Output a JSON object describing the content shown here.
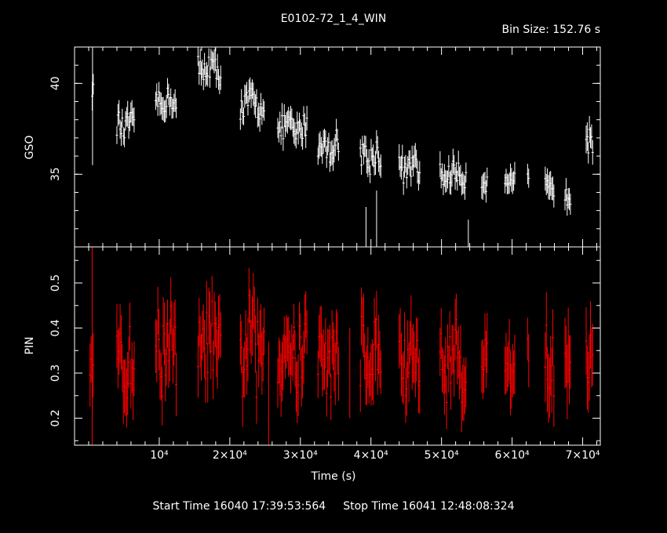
{
  "header": {
    "title": "E0102-72_1_4_WIN",
    "bin_size": "Bin Size: 152.76 s"
  },
  "footer": {
    "start_time": "Start Time 16040 17:39:53:564",
    "stop_time": "Stop Time 16041 12:48:08:324"
  },
  "colors": {
    "gso": "#ffffff",
    "pin": "#ff0000",
    "axes": "#ffffff",
    "background": "#000000"
  },
  "chart_data": [
    {
      "type": "scatter",
      "name": "gso-panel",
      "ylabel": "GSO",
      "xlim": [
        -2000,
        72500
      ],
      "ylim": [
        31.0,
        42.0
      ],
      "yticks": [
        35,
        40
      ],
      "ytick_labels": [
        "35",
        "40"
      ],
      "error_bars": true,
      "segments": [
        {
          "x0": 500,
          "x1": 800,
          "y": 39.7,
          "amp": 0.5,
          "err": 0.7
        },
        {
          "x0": 4000,
          "x1": 6500,
          "y": 37.6,
          "amp": 0.7,
          "err": 0.6
        },
        {
          "x0": 9500,
          "x1": 12500,
          "y": 39.0,
          "amp": 0.6,
          "err": 0.6
        },
        {
          "x0": 15500,
          "x1": 18800,
          "y": 40.8,
          "amp": 0.8,
          "err": 0.6
        },
        {
          "x0": 21500,
          "x1": 25000,
          "y": 38.9,
          "amp": 0.7,
          "err": 0.6
        },
        {
          "x0": 26800,
          "x1": 31000,
          "y": 37.5,
          "amp": 0.7,
          "err": 0.6
        },
        {
          "x0": 32500,
          "x1": 35500,
          "y": 36.5,
          "amp": 0.7,
          "err": 0.6
        },
        {
          "x0": 38500,
          "x1": 41500,
          "y": 36.0,
          "amp": 0.8,
          "err": 0.6
        },
        {
          "x0": 44000,
          "x1": 47000,
          "y": 35.3,
          "amp": 0.7,
          "err": 0.6
        },
        {
          "x0": 49800,
          "x1": 53500,
          "y": 35.0,
          "amp": 0.6,
          "err": 0.6
        },
        {
          "x0": 55700,
          "x1": 56500,
          "y": 34.6,
          "amp": 0.4,
          "err": 0.6
        },
        {
          "x0": 59000,
          "x1": 60500,
          "y": 34.5,
          "amp": 0.5,
          "err": 0.6
        },
        {
          "x0": 62200,
          "x1": 62500,
          "y": 34.8,
          "amp": 0.3,
          "err": 0.5
        },
        {
          "x0": 64700,
          "x1": 66000,
          "y": 34.2,
          "amp": 0.5,
          "err": 0.7
        },
        {
          "x0": 67500,
          "x1": 68300,
          "y": 33.8,
          "amp": 0.4,
          "err": 0.6
        },
        {
          "x0": 70500,
          "x1": 71500,
          "y": 37.5,
          "amp": 1.0,
          "err": 0.7
        }
      ],
      "outliers": [
        {
          "x": 550,
          "y": 39.0,
          "err": 3.5
        },
        {
          "x": 39300,
          "y": 31.0,
          "err": 2.2
        },
        {
          "x": 40800,
          "y": 31.8,
          "err": 2.3
        },
        {
          "x": 53800,
          "y": 30.8,
          "err": 1.7
        }
      ]
    },
    {
      "type": "scatter",
      "name": "pin-panel",
      "ylabel": "PIN",
      "xlabel": "Time (s)",
      "xlim": [
        -2000,
        72500
      ],
      "ylim": [
        0.14,
        0.58
      ],
      "yticks": [
        0.2,
        0.3,
        0.4,
        0.5
      ],
      "ytick_labels": [
        "0.2",
        "0.3",
        "0.4",
        "0.5"
      ],
      "xticks": [
        10000,
        20000,
        30000,
        40000,
        50000,
        60000,
        70000
      ],
      "xtick_labels": [
        "10⁴",
        "2×10⁴",
        "3×10⁴",
        "4×10⁴",
        "5×10⁴",
        "6×10⁴",
        "7×10⁴"
      ],
      "error_bars": true,
      "segments": [
        {
          "x0": 200,
          "x1": 800,
          "y": 0.32,
          "amp": 0.03,
          "err": 0.06
        },
        {
          "x0": 4000,
          "x1": 6500,
          "y": 0.31,
          "amp": 0.07,
          "err": 0.06
        },
        {
          "x0": 9500,
          "x1": 12500,
          "y": 0.36,
          "amp": 0.08,
          "err": 0.06
        },
        {
          "x0": 15500,
          "x1": 18800,
          "y": 0.36,
          "amp": 0.08,
          "err": 0.06
        },
        {
          "x0": 21500,
          "x1": 25000,
          "y": 0.36,
          "amp": 0.09,
          "err": 0.06
        },
        {
          "x0": 26800,
          "x1": 31000,
          "y": 0.35,
          "amp": 0.08,
          "err": 0.06
        },
        {
          "x0": 32500,
          "x1": 35500,
          "y": 0.33,
          "amp": 0.07,
          "err": 0.06
        },
        {
          "x0": 38500,
          "x1": 41500,
          "y": 0.33,
          "amp": 0.08,
          "err": 0.06
        },
        {
          "x0": 44000,
          "x1": 47000,
          "y": 0.33,
          "amp": 0.07,
          "err": 0.06
        },
        {
          "x0": 49800,
          "x1": 53500,
          "y": 0.33,
          "amp": 0.07,
          "err": 0.06
        },
        {
          "x0": 55700,
          "x1": 56500,
          "y": 0.33,
          "amp": 0.05,
          "err": 0.06
        },
        {
          "x0": 59000,
          "x1": 60500,
          "y": 0.32,
          "amp": 0.06,
          "err": 0.06
        },
        {
          "x0": 62200,
          "x1": 62500,
          "y": 0.36,
          "amp": 0.03,
          "err": 0.05
        },
        {
          "x0": 64700,
          "x1": 66000,
          "y": 0.31,
          "amp": 0.07,
          "err": 0.07
        },
        {
          "x0": 67500,
          "x1": 68300,
          "y": 0.34,
          "amp": 0.05,
          "err": 0.07
        },
        {
          "x0": 70500,
          "x1": 71500,
          "y": 0.33,
          "amp": 0.05,
          "err": 0.07
        }
      ],
      "outliers": [
        {
          "x": 500,
          "y": 0.36,
          "err": 0.22
        },
        {
          "x": 25500,
          "y": 0.25,
          "err": 0.12
        },
        {
          "x": 37000,
          "y": 0.3,
          "err": 0.1
        }
      ]
    }
  ]
}
